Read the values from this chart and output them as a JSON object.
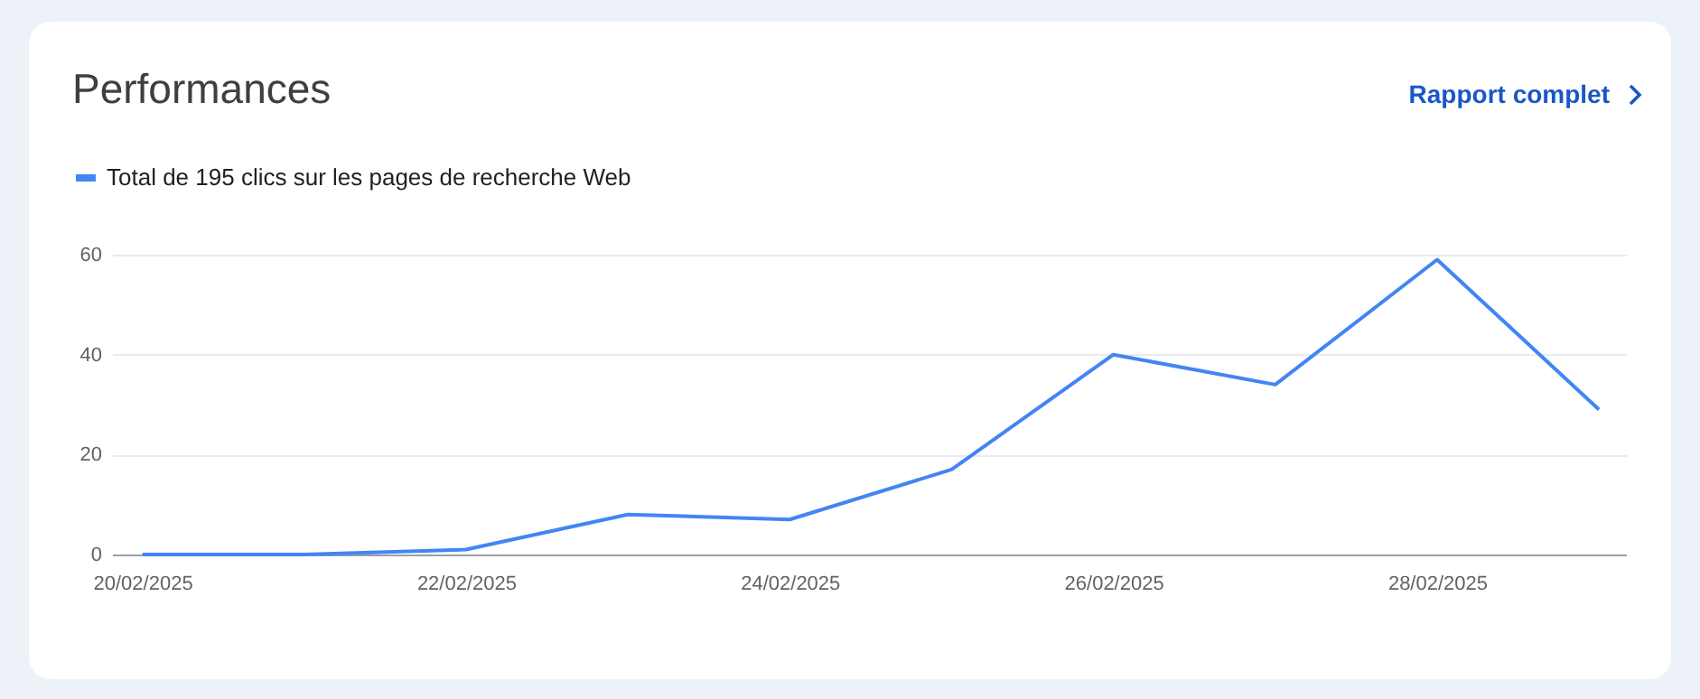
{
  "chart_data": {
    "type": "line",
    "title": "Performances",
    "annotations": [
      "Rapport complet"
    ],
    "x": [
      "2025-02-20",
      "2025-02-21",
      "2025-02-22",
      "2025-02-23",
      "2025-02-24",
      "2025-02-25",
      "2025-02-26",
      "2025-02-27",
      "2025-02-28",
      "2025-03-01"
    ],
    "series": [
      {
        "name": "Total de 195 clics sur les pages de recherche Web",
        "color": "#4285f4",
        "values": [
          0,
          0,
          1,
          8,
          7,
          17,
          40,
          34,
          59,
          29
        ]
      }
    ],
    "xlim": [
      "2025-02-19T19:30",
      "2025-03-01T04:00"
    ],
    "xticks": [
      {
        "value": "2025-02-20",
        "label": "20/02/2025"
      },
      {
        "value": "2025-02-22",
        "label": "22/02/2025"
      },
      {
        "value": "2025-02-24",
        "label": "24/02/2025"
      },
      {
        "value": "2025-02-26",
        "label": "26/02/2025"
      },
      {
        "value": "2025-02-28",
        "label": "28/02/2025"
      }
    ],
    "ylim": [
      0,
      60
    ],
    "yticks": [
      0,
      20,
      40,
      60
    ],
    "grid": "y",
    "legend": "top left",
    "marker": "none",
    "line_style": "solid"
  }
}
